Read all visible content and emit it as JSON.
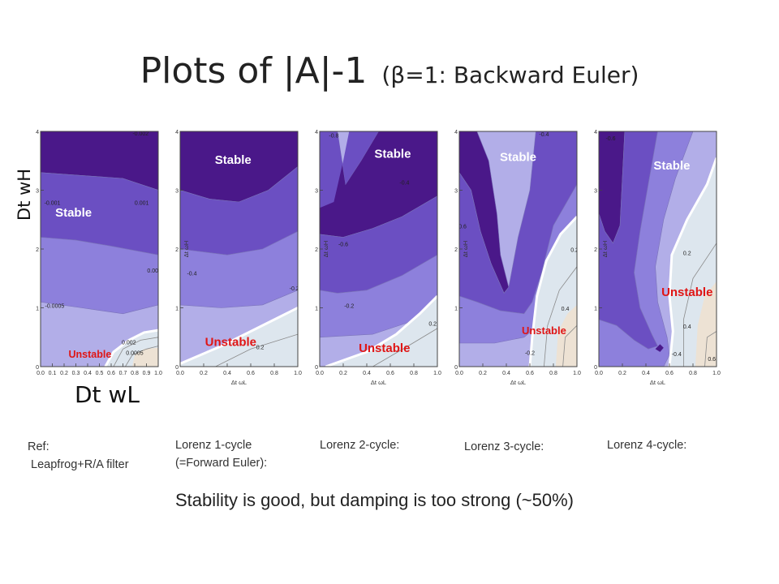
{
  "slide": {
    "title_main": "Plots of |A|-1",
    "title_sub": "(β=1: Backward Euler)",
    "y_axis_label": "Dt wH",
    "x_axis_label": "Dt wL",
    "footer": "Stability is good, but damping  is too strong (~50%)"
  },
  "captions": [
    "Ref:\n Leapfrog+R/A filter",
    "Lorenz 1-cycle\n(=Forward Euler):",
    "Lorenz 2-cycle:",
    "Lorenz 3-cycle:",
    "Lorenz 4-cycle:"
  ],
  "colors": {
    "level_0": "#4a1889",
    "level_1": "#6b4fc2",
    "level_2": "#8d80dc",
    "level_3": "#b2aee8",
    "unstable_fill": "#dde6ee",
    "unstable_warm": "#ede2d4",
    "boundary": "#ffffff",
    "stable_text": "#ffffff",
    "unstable_text": "#e01515"
  },
  "chart_data": [
    {
      "type": "contour",
      "title": "Ref: Leapfrog+R/A filter",
      "xlabel": "",
      "ylabel": "",
      "xlim": [
        0,
        1.0
      ],
      "ylim": [
        0,
        4
      ],
      "x_ticks": [
        "0.0",
        "0.1",
        "0.2",
        "0.3",
        "0.4",
        "0.5",
        "0.6",
        "0.7",
        "0.8",
        "0.9",
        "1.0"
      ],
      "y_ticks": [
        "0",
        "1",
        "2",
        "3",
        "4"
      ],
      "region_labels": {
        "stable": "Stable",
        "unstable": "Unstable"
      },
      "contour_labels": [
        "-0.002",
        "-0.001",
        "0.001",
        "-0.0005",
        "0.0015",
        "0.002",
        "0.0005"
      ]
    },
    {
      "type": "contour",
      "title": "Lorenz 1-cycle (=Forward Euler)",
      "xlabel": "Δt ωL",
      "ylabel": "Δt ωH",
      "xlim": [
        0,
        1.0
      ],
      "ylim": [
        0,
        4
      ],
      "x_ticks": [
        "0.0",
        "0.2",
        "0.4",
        "0.6",
        "0.8",
        "1.0"
      ],
      "y_ticks": [
        "0",
        "1",
        "2",
        "3",
        "4"
      ],
      "region_labels": {
        "stable": "Stable",
        "unstable": "Unstable"
      },
      "contour_labels": [
        "-0.4",
        "-0.2",
        "0.2"
      ]
    },
    {
      "type": "contour",
      "title": "Lorenz 2-cycle",
      "xlabel": "Δt ωL",
      "ylabel": "Δt ωH",
      "xlim": [
        0,
        1.0
      ],
      "ylim": [
        0,
        4
      ],
      "x_ticks": [
        "0.0",
        "0.2",
        "0.4",
        "0.6",
        "0.8",
        "1.0"
      ],
      "y_ticks": [
        "0",
        "1",
        "2",
        "3",
        "4"
      ],
      "region_labels": {
        "stable": "Stable",
        "unstable": "Unstable"
      },
      "contour_labels": [
        "-0.8",
        "-0.4",
        "-0.6",
        "-0.2",
        "0.2"
      ]
    },
    {
      "type": "contour",
      "title": "Lorenz 3-cycle",
      "xlabel": "Δt ωL",
      "ylabel": "Δt ωH",
      "xlim": [
        0,
        1.0
      ],
      "ylim": [
        0,
        4
      ],
      "x_ticks": [
        "0.0",
        "0.2",
        "0.4",
        "0.6",
        "0.8",
        "1.0"
      ],
      "y_ticks": [
        "0",
        "1",
        "2",
        "3",
        "4"
      ],
      "region_labels": {
        "stable": "Stable",
        "unstable": "Unstable"
      },
      "contour_labels": [
        "-0.4",
        "-0.6",
        "0.2",
        "0.4",
        "-0.2"
      ]
    },
    {
      "type": "contour",
      "title": "Lorenz 4-cycle",
      "xlabel": "Δt ωL",
      "ylabel": "Δt ωH",
      "xlim": [
        0,
        1.0
      ],
      "ylim": [
        0,
        4
      ],
      "x_ticks": [
        "0.0",
        "0.2",
        "0.4",
        "0.6",
        "0.8",
        "1.0"
      ],
      "y_ticks": [
        "0",
        "1",
        "2",
        "3",
        "4"
      ],
      "region_labels": {
        "stable": "Stable",
        "unstable": "Unstable"
      },
      "contour_labels": [
        "-0.6",
        "0.2",
        "0.4",
        "-0.4",
        "0.6"
      ]
    }
  ]
}
